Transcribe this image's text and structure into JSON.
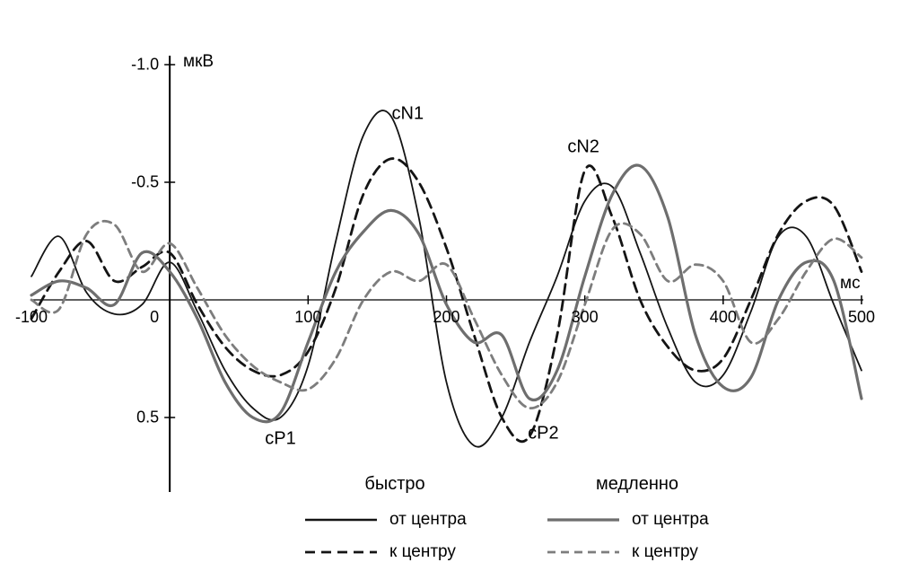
{
  "chart_data": {
    "type": "line",
    "title": "",
    "xlabel": "мс",
    "ylabel": "мкВ",
    "grid": false,
    "x_axis": {
      "min": -100,
      "max": 500,
      "ticks": [
        -100,
        0,
        100,
        200,
        300,
        400,
        500
      ],
      "tick_labels": [
        "-100",
        "0",
        "100",
        "200",
        "300",
        "400",
        "500"
      ],
      "unit": "мс"
    },
    "y_axis": {
      "min": -1.0,
      "max": 0.5,
      "inverted_negative_up": true,
      "ticks": [
        -1.0,
        -0.5,
        0.5
      ],
      "tick_labels": [
        "-1.0",
        "-0.5",
        "0.5"
      ],
      "unit": "мкВ"
    },
    "x_start": -100,
    "x_step": 20,
    "annotations": [
      {
        "label": "cN1",
        "x": 172,
        "y": -0.79
      },
      {
        "label": "cN2",
        "x": 299,
        "y": -0.65
      },
      {
        "label": "cP1",
        "x": 80,
        "y": 0.59
      },
      {
        "label": "cP2",
        "x": 270,
        "y": 0.57
      }
    ],
    "series": [
      {
        "name": "быстро — от центра",
        "group": "быстро",
        "label": "от центра",
        "color": "#141414",
        "dash": "",
        "width": 1.8,
        "values": [
          -0.1,
          -0.27,
          -0.03,
          0.06,
          0.02,
          -0.16,
          0.05,
          0.3,
          0.46,
          0.5,
          0.28,
          -0.25,
          -0.7,
          -0.78,
          -0.35,
          0.35,
          0.62,
          0.5,
          0.18,
          -0.1,
          -0.42,
          -0.48,
          -0.2,
          0.12,
          0.35,
          0.32,
          0.05,
          -0.27,
          -0.27,
          0.02,
          0.3
        ]
      },
      {
        "name": "быстро — к центру",
        "group": "быстро",
        "label": "к центру",
        "color": "#141414",
        "dash": "11 7",
        "width": 2.8,
        "values": [
          0.08,
          -0.12,
          -0.25,
          -0.08,
          -0.14,
          -0.2,
          0.02,
          0.2,
          0.3,
          0.32,
          0.22,
          -0.05,
          -0.45,
          -0.6,
          -0.5,
          -0.22,
          0.15,
          0.5,
          0.58,
          0.15,
          -0.55,
          -0.35,
          0.0,
          0.2,
          0.3,
          0.25,
          0.0,
          -0.28,
          -0.42,
          -0.4,
          -0.12
        ]
      },
      {
        "name": "медленно — от центра",
        "group": "медленно",
        "label": "от центра",
        "color": "#6e6e6e",
        "dash": "",
        "width": 3.2,
        "values": [
          -0.02,
          -0.08,
          -0.05,
          0.02,
          -0.2,
          -0.12,
          0.08,
          0.35,
          0.5,
          0.48,
          0.18,
          -0.12,
          -0.29,
          -0.38,
          -0.28,
          0.02,
          0.18,
          0.15,
          0.42,
          0.3,
          -0.1,
          -0.45,
          -0.57,
          -0.35,
          0.15,
          0.37,
          0.33,
          0.0,
          -0.16,
          -0.08,
          0.42
        ]
      },
      {
        "name": "медленно — к центру",
        "group": "медленно",
        "label": "к центру",
        "color": "#7d7d7d",
        "dash": "9 6",
        "width": 2.8,
        "values": [
          0.0,
          0.04,
          -0.28,
          -0.32,
          -0.12,
          -0.24,
          -0.05,
          0.15,
          0.28,
          0.35,
          0.38,
          0.25,
          0.0,
          -0.12,
          -0.08,
          -0.15,
          0.08,
          0.32,
          0.46,
          0.35,
          0.02,
          -0.3,
          -0.28,
          -0.08,
          -0.15,
          -0.08,
          0.18,
          0.08,
          -0.12,
          -0.26,
          -0.18
        ]
      }
    ]
  },
  "legend": {
    "groups": [
      {
        "title": "быстро",
        "items": [
          {
            "label": "от центра",
            "series": 0
          },
          {
            "label": "к центру",
            "series": 1
          }
        ]
      },
      {
        "title": "медленно",
        "items": [
          {
            "label": "от центра",
            "series": 2
          },
          {
            "label": "к центру",
            "series": 3
          }
        ]
      }
    ]
  }
}
